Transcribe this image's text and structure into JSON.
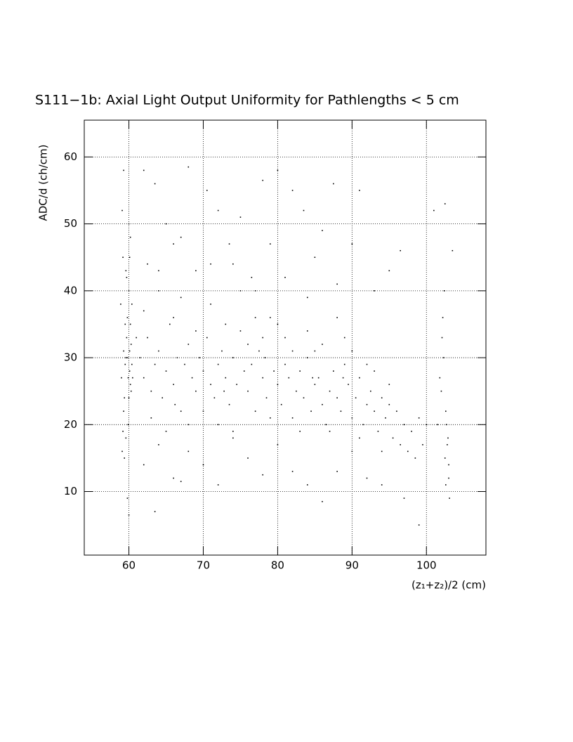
{
  "chart_data": {
    "type": "scatter",
    "title": "S111−1b: Axial Light Output Uniformity for Pathlengths < 5 cm",
    "x_label": "(z₁+z₂)/2 (cm)",
    "y_label": "ADC/d (ch/cm)",
    "xlim": [
      54,
      108
    ],
    "ylim": [
      0.5,
      65.5
    ],
    "xticks": [
      60,
      70,
      80,
      90,
      100
    ],
    "yticks": [
      10,
      20,
      30,
      40,
      50,
      60
    ],
    "grid": true,
    "color": "#000000",
    "x": [
      59.0,
      59.2,
      59.3,
      59.5,
      59.6,
      59.8,
      60.0,
      60.1,
      60.2,
      60.3,
      59.1,
      59.4,
      59.7,
      60.4,
      59.9,
      60.1,
      59.6,
      60.2,
      59.3,
      60.0,
      59.5,
      59.8,
      60.3,
      59.2,
      60.1,
      59.9,
      60.4,
      59.4,
      60.0,
      59.6,
      58.9,
      59.1,
      60.2,
      59.7,
      60.5,
      59.3,
      59.8,
      60.0,
      61.5,
      62,
      62.5,
      63,
      63.5,
      64,
      64.5,
      65,
      65.5,
      66,
      66.5,
      67,
      67.5,
      68,
      68.5,
      69,
      69.5,
      70,
      70.5,
      71,
      71.5,
      72,
      72.5,
      73,
      73.5,
      74,
      74.5,
      75,
      75.5,
      76,
      76.5,
      77,
      77.5,
      78,
      78.5,
      79,
      79.5,
      80,
      80.5,
      81,
      81.5,
      82,
      82.5,
      83,
      83.5,
      84,
      84.5,
      85,
      85.5,
      86,
      86.5,
      87,
      87.5,
      88,
      88.5,
      89,
      89.5,
      90,
      90.5,
      91,
      91.5,
      92,
      92.5,
      93,
      93.5,
      94,
      94.5,
      95,
      95.5,
      96,
      96.5,
      97,
      97.5,
      98,
      98.5,
      99,
      99.5,
      100,
      62,
      63,
      64,
      65,
      66,
      67,
      68,
      69,
      70,
      71,
      72,
      73,
      74,
      75,
      76,
      77,
      78,
      79,
      80,
      81,
      82,
      83,
      84,
      85,
      86,
      87,
      88,
      89,
      90,
      91,
      92,
      93,
      94,
      95,
      61,
      66.2,
      72.8,
      78.3,
      84.7,
      88.8,
      62,
      63.5,
      65,
      66,
      68,
      69,
      70.5,
      72,
      73.5,
      74,
      75,
      76.5,
      78,
      79,
      80,
      81,
      82,
      83.5,
      85,
      86,
      87.5,
      88,
      90,
      91,
      93,
      95,
      96.5,
      101,
      102.5,
      103.5,
      64,
      67,
      71,
      77,
      84,
      62.5,
      62,
      64,
      66,
      68,
      70,
      72,
      74,
      76,
      78,
      80,
      82,
      84,
      86,
      88,
      90,
      92,
      94,
      97,
      99,
      63.5,
      67,
      102,
      102.3,
      102.5,
      102.7,
      103,
      102.2,
      102.8,
      103.1,
      102.4,
      102.6,
      101.8,
      103,
      102.1,
      102.9,
      101.5,
      102.6
    ],
    "values": [
      27,
      45,
      22,
      35,
      18,
      30,
      40,
      28,
      48,
      25,
      52,
      15,
      33,
      38,
      20,
      31,
      43,
      26,
      58,
      24,
      29,
      36,
      32,
      19,
      45,
      27,
      29,
      24,
      50,
      30,
      38,
      16,
      35,
      42,
      27,
      31,
      9,
      6.5,
      30,
      27,
      33,
      25,
      29,
      31,
      24,
      28,
      35,
      26,
      30,
      22,
      29,
      32,
      27,
      25,
      30,
      28,
      33,
      26,
      24,
      29,
      31,
      27,
      23,
      30,
      26,
      34,
      28,
      25,
      29,
      22,
      31,
      27,
      24,
      36,
      28,
      26,
      23,
      29,
      27,
      21,
      25,
      28,
      24,
      30,
      22,
      26,
      27,
      23,
      20,
      25,
      28,
      24,
      22,
      29,
      26,
      21,
      24,
      27,
      20,
      23,
      25,
      22,
      19,
      24,
      21,
      26,
      18,
      22,
      17,
      20,
      16,
      19,
      15,
      21,
      17,
      20,
      37,
      21,
      40,
      19,
      36,
      39,
      20,
      34,
      22,
      38,
      20,
      35,
      19,
      40,
      32,
      36,
      33,
      21,
      35,
      33,
      31,
      19,
      34,
      31,
      32,
      19,
      36,
      33,
      31,
      18,
      29,
      28,
      16,
      23,
      33,
      23,
      25,
      30,
      27,
      27,
      58,
      56,
      50,
      47,
      58.5,
      43,
      55,
      52,
      47,
      44,
      51,
      42,
      56.5,
      47,
      58,
      42,
      55,
      52,
      45,
      49,
      56,
      41,
      47,
      55,
      40,
      43,
      46,
      52,
      53,
      46,
      43,
      48,
      44,
      40,
      39,
      44,
      14,
      17,
      12,
      16,
      14,
      11,
      18,
      15,
      12.5,
      17,
      13,
      11,
      8.5,
      13,
      16,
      12,
      11,
      9,
      5,
      7,
      11.5,
      25,
      30,
      15,
      20,
      12,
      36,
      17,
      9,
      40,
      22,
      27,
      14,
      33,
      18,
      20,
      11
    ]
  }
}
